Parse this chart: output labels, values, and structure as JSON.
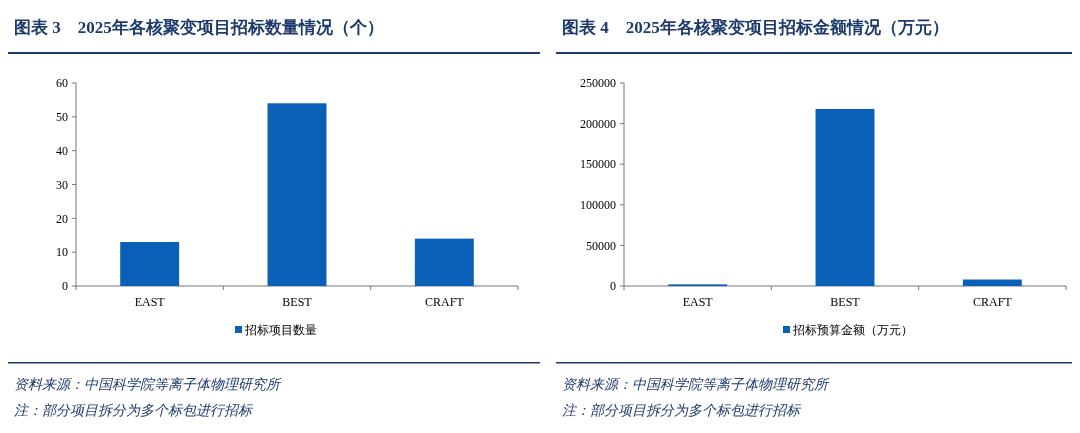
{
  "chart_data": [
    {
      "type": "bar",
      "title": "图表 3　2025年各核聚变项目招标数量情况（个）",
      "categories": [
        "EAST",
        "BEST",
        "CRAFT"
      ],
      "series": [
        {
          "name": "招标项目数量",
          "color": "#0a60b6",
          "values": [
            13,
            54,
            14
          ]
        }
      ],
      "ylim": [
        0,
        60
      ],
      "yticks": [
        0,
        10,
        20,
        30,
        40,
        50,
        60
      ],
      "grid": false,
      "legend": "bottom",
      "annotations": [
        "资料来源：中国科学院等离子体物理研究所",
        "注：部分项目拆分为多个标包进行招标"
      ]
    },
    {
      "type": "bar",
      "title": "图表 4　2025年各核聚变项目招标金额情况（万元）",
      "categories": [
        "EAST",
        "BEST",
        "CRAFT"
      ],
      "series": [
        {
          "name": "招标预算金额（万元）",
          "color": "#0a60b6",
          "values": [
            2000,
            218000,
            8000
          ]
        }
      ],
      "ylim": [
        0,
        250000
      ],
      "yticks": [
        0,
        50000,
        100000,
        150000,
        200000,
        250000
      ],
      "grid": false,
      "legend": "bottom",
      "annotations": [
        "资料来源：中国科学院等离子体物理研究所",
        "注：部分项目拆分为多个标包进行招标"
      ]
    }
  ]
}
